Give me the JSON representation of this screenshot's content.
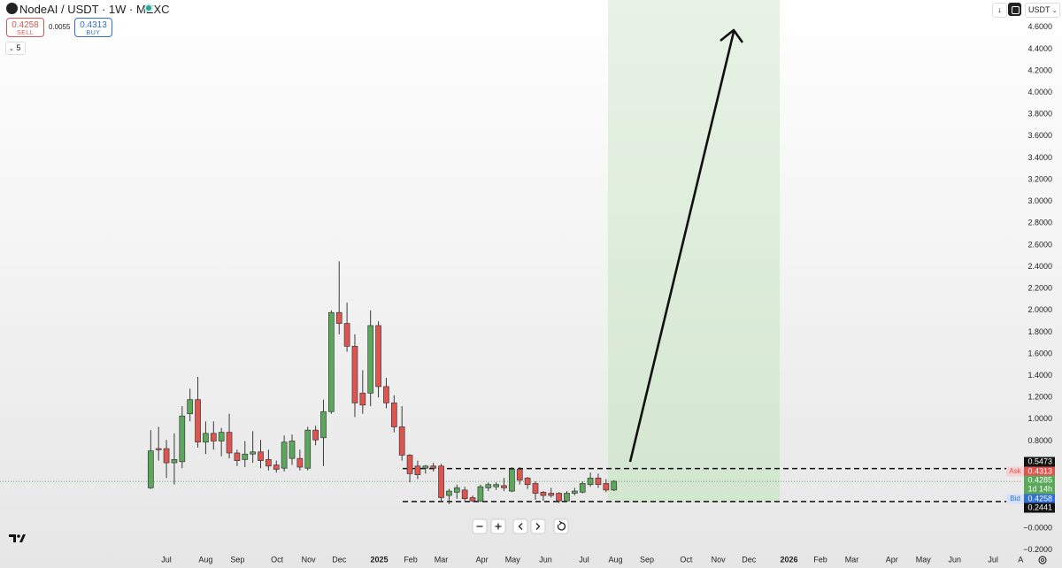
{
  "header": {
    "symbol": "NodeAI / USDT · 1W · MEXC",
    "sell_price": "0.4258",
    "sell_label": "SELL",
    "spread": "0.0055",
    "buy_price": "0.4313",
    "buy_label": "BUY",
    "indicators_count": "5",
    "currency": "USDT"
  },
  "chart_data": {
    "type": "candlestick",
    "open": [
      0.37,
      0.73,
      0.73,
      0.6,
      0.61,
      1.05,
      1.18,
      0.79,
      0.87,
      0.8,
      0.88,
      0.69,
      0.63,
      0.68,
      0.7,
      0.63,
      0.58,
      0.55,
      0.64,
      0.64,
      0.55,
      0.9,
      0.83,
      1.07,
      1.98,
      1.88,
      1.67,
      1.24,
      1.24,
      1.86,
      1.3,
      1.15,
      0.93,
      0.67,
      0.57,
      0.55,
      0.57,
      0.57,
      0.3,
      0.33,
      0.35,
      0.28,
      0.25,
      0.37,
      0.38,
      0.39,
      0.34,
      0.54,
      0.46,
      0.41,
      0.33,
      0.32,
      0.32,
      0.25,
      0.32,
      0.33,
      0.4,
      0.46,
      0.41,
      0.35
    ],
    "high": [
      0.9,
      0.93,
      0.81,
      0.87,
      1.12,
      1.28,
      1.39,
      0.98,
      0.98,
      0.92,
      1.05,
      0.72,
      0.8,
      0.89,
      0.81,
      0.72,
      0.62,
      0.85,
      0.86,
      0.72,
      0.93,
      0.94,
      1.18,
      2.0,
      2.45,
      2.07,
      1.78,
      1.45,
      2.0,
      1.9,
      1.38,
      1.22,
      1.12,
      0.68,
      0.62,
      0.58,
      0.6,
      0.59,
      0.36,
      0.4,
      0.38,
      0.3,
      0.4,
      0.42,
      0.42,
      0.46,
      0.56,
      0.56,
      0.47,
      0.43,
      0.34,
      0.37,
      0.33,
      0.34,
      0.37,
      0.43,
      0.51,
      0.5,
      0.45,
      0.44
    ],
    "low": [
      0.36,
      0.62,
      0.46,
      0.4,
      0.55,
      0.98,
      0.74,
      0.68,
      0.72,
      0.66,
      0.64,
      0.57,
      0.56,
      0.6,
      0.55,
      0.53,
      0.51,
      0.52,
      0.58,
      0.53,
      0.53,
      0.76,
      0.57,
      1.05,
      1.78,
      1.62,
      1.02,
      1.05,
      1.12,
      1.2,
      1.1,
      0.88,
      0.62,
      0.42,
      0.45,
      0.5,
      0.52,
      0.24,
      0.22,
      0.27,
      0.25,
      0.24,
      0.24,
      0.34,
      0.35,
      0.34,
      0.33,
      0.4,
      0.36,
      0.26,
      0.25,
      0.28,
      0.23,
      0.24,
      0.3,
      0.32,
      0.38,
      0.37,
      0.33,
      0.34
    ],
    "close": [
      0.71,
      0.72,
      0.6,
      0.63,
      1.03,
      1.18,
      0.79,
      0.87,
      0.8,
      0.88,
      0.69,
      0.62,
      0.68,
      0.7,
      0.62,
      0.57,
      0.54,
      0.79,
      0.8,
      0.56,
      0.9,
      0.81,
      1.07,
      1.98,
      1.88,
      1.67,
      1.15,
      1.13,
      1.86,
      1.3,
      1.15,
      0.93,
      0.67,
      0.5,
      0.49,
      0.57,
      0.55,
      0.28,
      0.34,
      0.37,
      0.27,
      0.25,
      0.38,
      0.4,
      0.4,
      0.37,
      0.54,
      0.44,
      0.4,
      0.32,
      0.3,
      0.3,
      0.25,
      0.32,
      0.34,
      0.41,
      0.46,
      0.4,
      0.35,
      0.43
    ],
    "up_color": "#5ba85b",
    "down_color": "#e05450",
    "border_color": "#3a3a3a",
    "ylim": [
      -0.35,
      4.85
    ],
    "yticks": [
      {
        "value": 4.6,
        "label": "4.6000"
      },
      {
        "value": 4.4,
        "label": "4.4000"
      },
      {
        "value": 4.2,
        "label": "4.2000"
      },
      {
        "value": 4.0,
        "label": "4.0000"
      },
      {
        "value": 3.8,
        "label": "3.8000"
      },
      {
        "value": 3.6,
        "label": "3.6000"
      },
      {
        "value": 3.4,
        "label": "3.4000"
      },
      {
        "value": 3.2,
        "label": "3.2000"
      },
      {
        "value": 3.0,
        "label": "3.0000"
      },
      {
        "value": 2.8,
        "label": "2.8000"
      },
      {
        "value": 2.6,
        "label": "2.6000"
      },
      {
        "value": 2.4,
        "label": "2.4000"
      },
      {
        "value": 2.2,
        "label": "2.2000"
      },
      {
        "value": 2.0,
        "label": "2.0000"
      },
      {
        "value": 1.8,
        "label": "1.8000"
      },
      {
        "value": 1.6,
        "label": "1.6000"
      },
      {
        "value": 1.4,
        "label": "1.4000"
      },
      {
        "value": 1.2,
        "label": "1.2000"
      },
      {
        "value": 1.0,
        "label": "1.0000"
      },
      {
        "value": 0.8,
        "label": "0.8000"
      },
      {
        "value": 0,
        "label": "−0.0000"
      },
      {
        "value": -0.2,
        "label": "−0.2000"
      }
    ],
    "xlim": [
      -19.2,
      111.0
    ],
    "xticks": [
      {
        "value": 2.0,
        "label": "Jul"
      },
      {
        "value": 7.0,
        "label": "Aug"
      },
      {
        "value": 11.05,
        "label": "Sep"
      },
      {
        "value": 16.1,
        "label": "Oct"
      },
      {
        "value": 20.1,
        "label": "Nov"
      },
      {
        "value": 24.0,
        "label": "Dec"
      },
      {
        "value": 29.1,
        "label": "2025"
      },
      {
        "value": 33.1,
        "label": "Feb"
      },
      {
        "value": 37.0,
        "label": "Mar"
      },
      {
        "value": 42.2,
        "label": "Apr"
      },
      {
        "value": 46.1,
        "label": "May"
      },
      {
        "value": 50.3,
        "label": "Jun"
      },
      {
        "value": 55.2,
        "label": "Jul"
      },
      {
        "value": 59.2,
        "label": "Aug"
      },
      {
        "value": 63.2,
        "label": "Sep"
      },
      {
        "value": 68.2,
        "label": "Oct"
      },
      {
        "value": 72.3,
        "label": "Nov"
      },
      {
        "value": 76.2,
        "label": "Dec"
      },
      {
        "value": 81.3,
        "label": "2026"
      },
      {
        "value": 85.3,
        "label": "Feb"
      },
      {
        "value": 89.3,
        "label": "Mar"
      },
      {
        "value": 94.4,
        "label": "Apr"
      },
      {
        "value": 98.4,
        "label": "May"
      },
      {
        "value": 102.4,
        "label": "Jun"
      },
      {
        "value": 107.3,
        "label": "Jul"
      },
      {
        "value": 110.8,
        "label": "A"
      }
    ],
    "levels": [
      0.5473,
      0.2441
    ],
    "last_price": 0.4285,
    "last_color": "#5ba85b",
    "ask": {
      "label": "Ask",
      "value": 0.4313,
      "color": "#e05450"
    },
    "countdown": "1d 14h",
    "bid": {
      "label": "Bid",
      "value": 0.4258,
      "color": "#2f6fd6"
    }
  }
}
